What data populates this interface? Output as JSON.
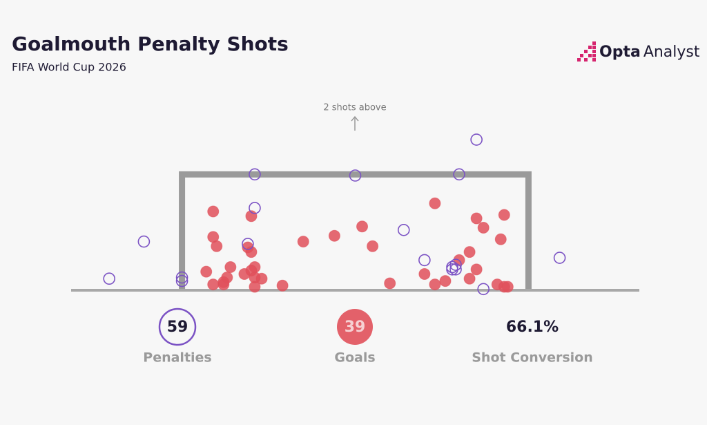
{
  "title": "Goalmouth Penalty Shots",
  "subtitle": "FIFA World Cup 2026",
  "logo": {
    "brand": "Opta",
    "product": "Analyst"
  },
  "chart_data": {
    "type": "scatter",
    "annotation": "2 shots above",
    "xlim": [
      -0.32,
      1.32
    ],
    "ylim": [
      0,
      1.67
    ],
    "series": [
      {
        "color": "#e0505a",
        "filled": true,
        "x": [
          0.09,
          0.2,
          0.09,
          0.1,
          0.35,
          0.44,
          0.52,
          0.55,
          0.73,
          0.85,
          0.87,
          0.93,
          0.92,
          0.19,
          0.2,
          0.83,
          0.8,
          0.14,
          0.07,
          0.21,
          0.2,
          0.18,
          0.13,
          0.23,
          0.85,
          0.7,
          0.83,
          0.76,
          0.73,
          0.6,
          0.29,
          0.09,
          0.12,
          0.12,
          0.21,
          0.91,
          0.93,
          0.94,
          0.21
        ],
        "values": [
          0.68,
          0.64,
          0.46,
          0.38,
          0.42,
          0.47,
          0.55,
          0.38,
          0.75,
          0.62,
          0.54,
          0.65,
          0.44,
          0.37,
          0.33,
          0.33,
          0.26,
          0.2,
          0.16,
          0.2,
          0.17,
          0.14,
          0.11,
          0.1,
          0.18,
          0.14,
          0.1,
          0.08,
          0.05,
          0.06,
          0.04,
          0.05,
          0.05,
          0.07,
          0.03,
          0.05,
          0.03,
          0.03,
          0.11
        ]
      },
      {
        "color": "#7b52c4",
        "filled": false,
        "x": [
          0.85,
          0.21,
          0.5,
          0.8,
          0.21,
          0.64,
          -0.11,
          0.19,
          1.09,
          0.7,
          -0.21,
          0.0,
          0.0,
          0.78,
          0.78,
          0.79,
          0.87,
          0.79
        ],
        "values": [
          1.3,
          1.0,
          0.99,
          1.0,
          0.71,
          0.52,
          0.42,
          0.4,
          0.28,
          0.26,
          0.1,
          0.11,
          0.08,
          0.2,
          0.18,
          0.18,
          0.01,
          0.22
        ]
      }
    ],
    "stats": [
      {
        "value": 59,
        "label": "Penalties"
      },
      {
        "value": 39,
        "label": "Goals"
      },
      {
        "value": 66.1,
        "value_label": "66.1%",
        "label": "Shot Conversion"
      }
    ]
  }
}
